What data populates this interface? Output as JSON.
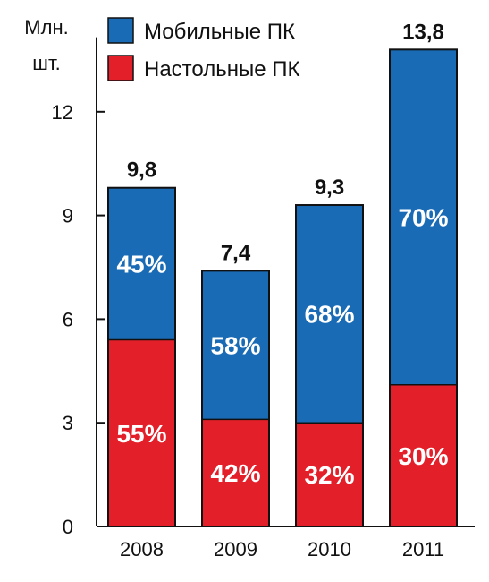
{
  "chart_data": {
    "type": "bar",
    "stacked": true,
    "ylabel_lines": [
      "Млн.",
      "шт."
    ],
    "categories": [
      "2008",
      "2009",
      "2010",
      "2011"
    ],
    "ylim": [
      0,
      14
    ],
    "yticks": [
      0,
      3,
      6,
      9,
      12
    ],
    "ytick_labels": [
      "0",
      "3",
      "6",
      "9",
      "12"
    ],
    "totals": [
      9.8,
      7.4,
      9.3,
      13.8
    ],
    "total_labels": [
      "9,8",
      "7,4",
      "9,3",
      "13,8"
    ],
    "series": [
      {
        "name": "Настольные ПК",
        "color": "#e3202a",
        "values": [
          5.4,
          3.1,
          3.0,
          4.1
        ],
        "labels": [
          "55%",
          "42%",
          "32%",
          "30%"
        ]
      },
      {
        "name": "Мобильные ПК",
        "color": "#1a6bb5",
        "values": [
          4.4,
          4.3,
          6.3,
          9.7
        ],
        "labels": [
          "45%",
          "58%",
          "68%",
          "70%"
        ]
      }
    ],
    "legend": {
      "position": "top-left",
      "order": [
        "Мобильные ПК",
        "Настольные ПК"
      ]
    },
    "grid": false,
    "colors": {
      "axis": "#111111",
      "bar_border": "#111111",
      "percent_text": "#ffffff"
    }
  }
}
